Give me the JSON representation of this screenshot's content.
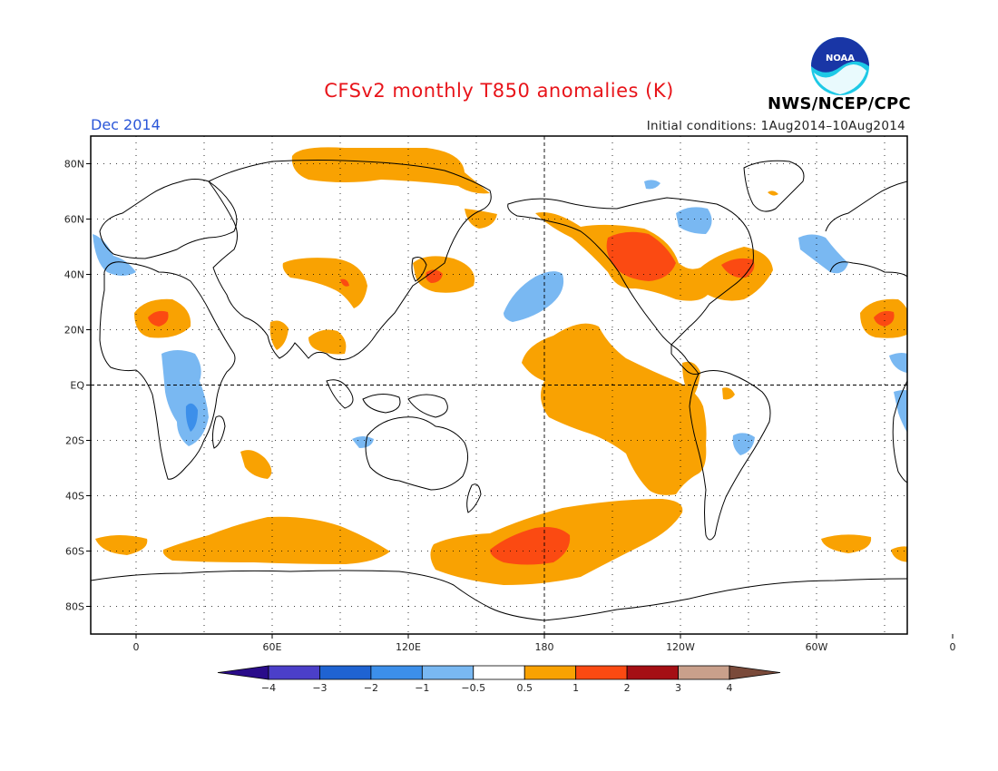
{
  "header": {
    "title": "CFSv2 monthly T850 anomalies (K)",
    "valid_month": "Dec 2014",
    "initial_conditions": "Initial conditions: 1Aug2014–10Aug2014",
    "agency": "NWS/NCEP/CPC",
    "logo_text": "NOAA"
  },
  "map": {
    "lon_range": [
      -20,
      180,
      340
    ],
    "lat_range": [
      -90,
      90
    ],
    "lat_ticks": [
      {
        "lat": 80,
        "label": "80N"
      },
      {
        "lat": 60,
        "label": "60N"
      },
      {
        "lat": 40,
        "label": "40N"
      },
      {
        "lat": 20,
        "label": "20N"
      },
      {
        "lat": 0,
        "label": "EQ"
      },
      {
        "lat": -20,
        "label": "20S"
      },
      {
        "lat": -40,
        "label": "40S"
      },
      {
        "lat": -60,
        "label": "60S"
      },
      {
        "lat": -80,
        "label": "80S"
      }
    ],
    "lon_ticks": [
      {
        "lon": 0,
        "label": "0"
      },
      {
        "lon": 60,
        "label": "60E"
      },
      {
        "lon": 120,
        "label": "120E"
      },
      {
        "lon": 180,
        "label": "180"
      },
      {
        "lon": 240,
        "label": "120W"
      },
      {
        "lon": 300,
        "label": "60W"
      },
      {
        "lon": 360,
        "label": "0"
      }
    ]
  },
  "colorbar": {
    "colors": [
      "#2a0c8a",
      "#4b3fc9",
      "#1f63d2",
      "#3c8fea",
      "#79b8f2",
      "#ffffff",
      "#f9a202",
      "#fb4a12",
      "#a50f14",
      "#c9a08b",
      "#7a4a3a"
    ],
    "labels": [
      "−4",
      "−3",
      "−2",
      "−1",
      "−0.5",
      "0.5",
      "1",
      "2",
      "3",
      "4"
    ]
  },
  "colors": {
    "warm_1": "#f9a202",
    "warm_2": "#fb4a12",
    "cool_1": "#79b8f2",
    "cool_2": "#3c8fea",
    "title": "#e8141a",
    "month": "#2a56d8"
  }
}
